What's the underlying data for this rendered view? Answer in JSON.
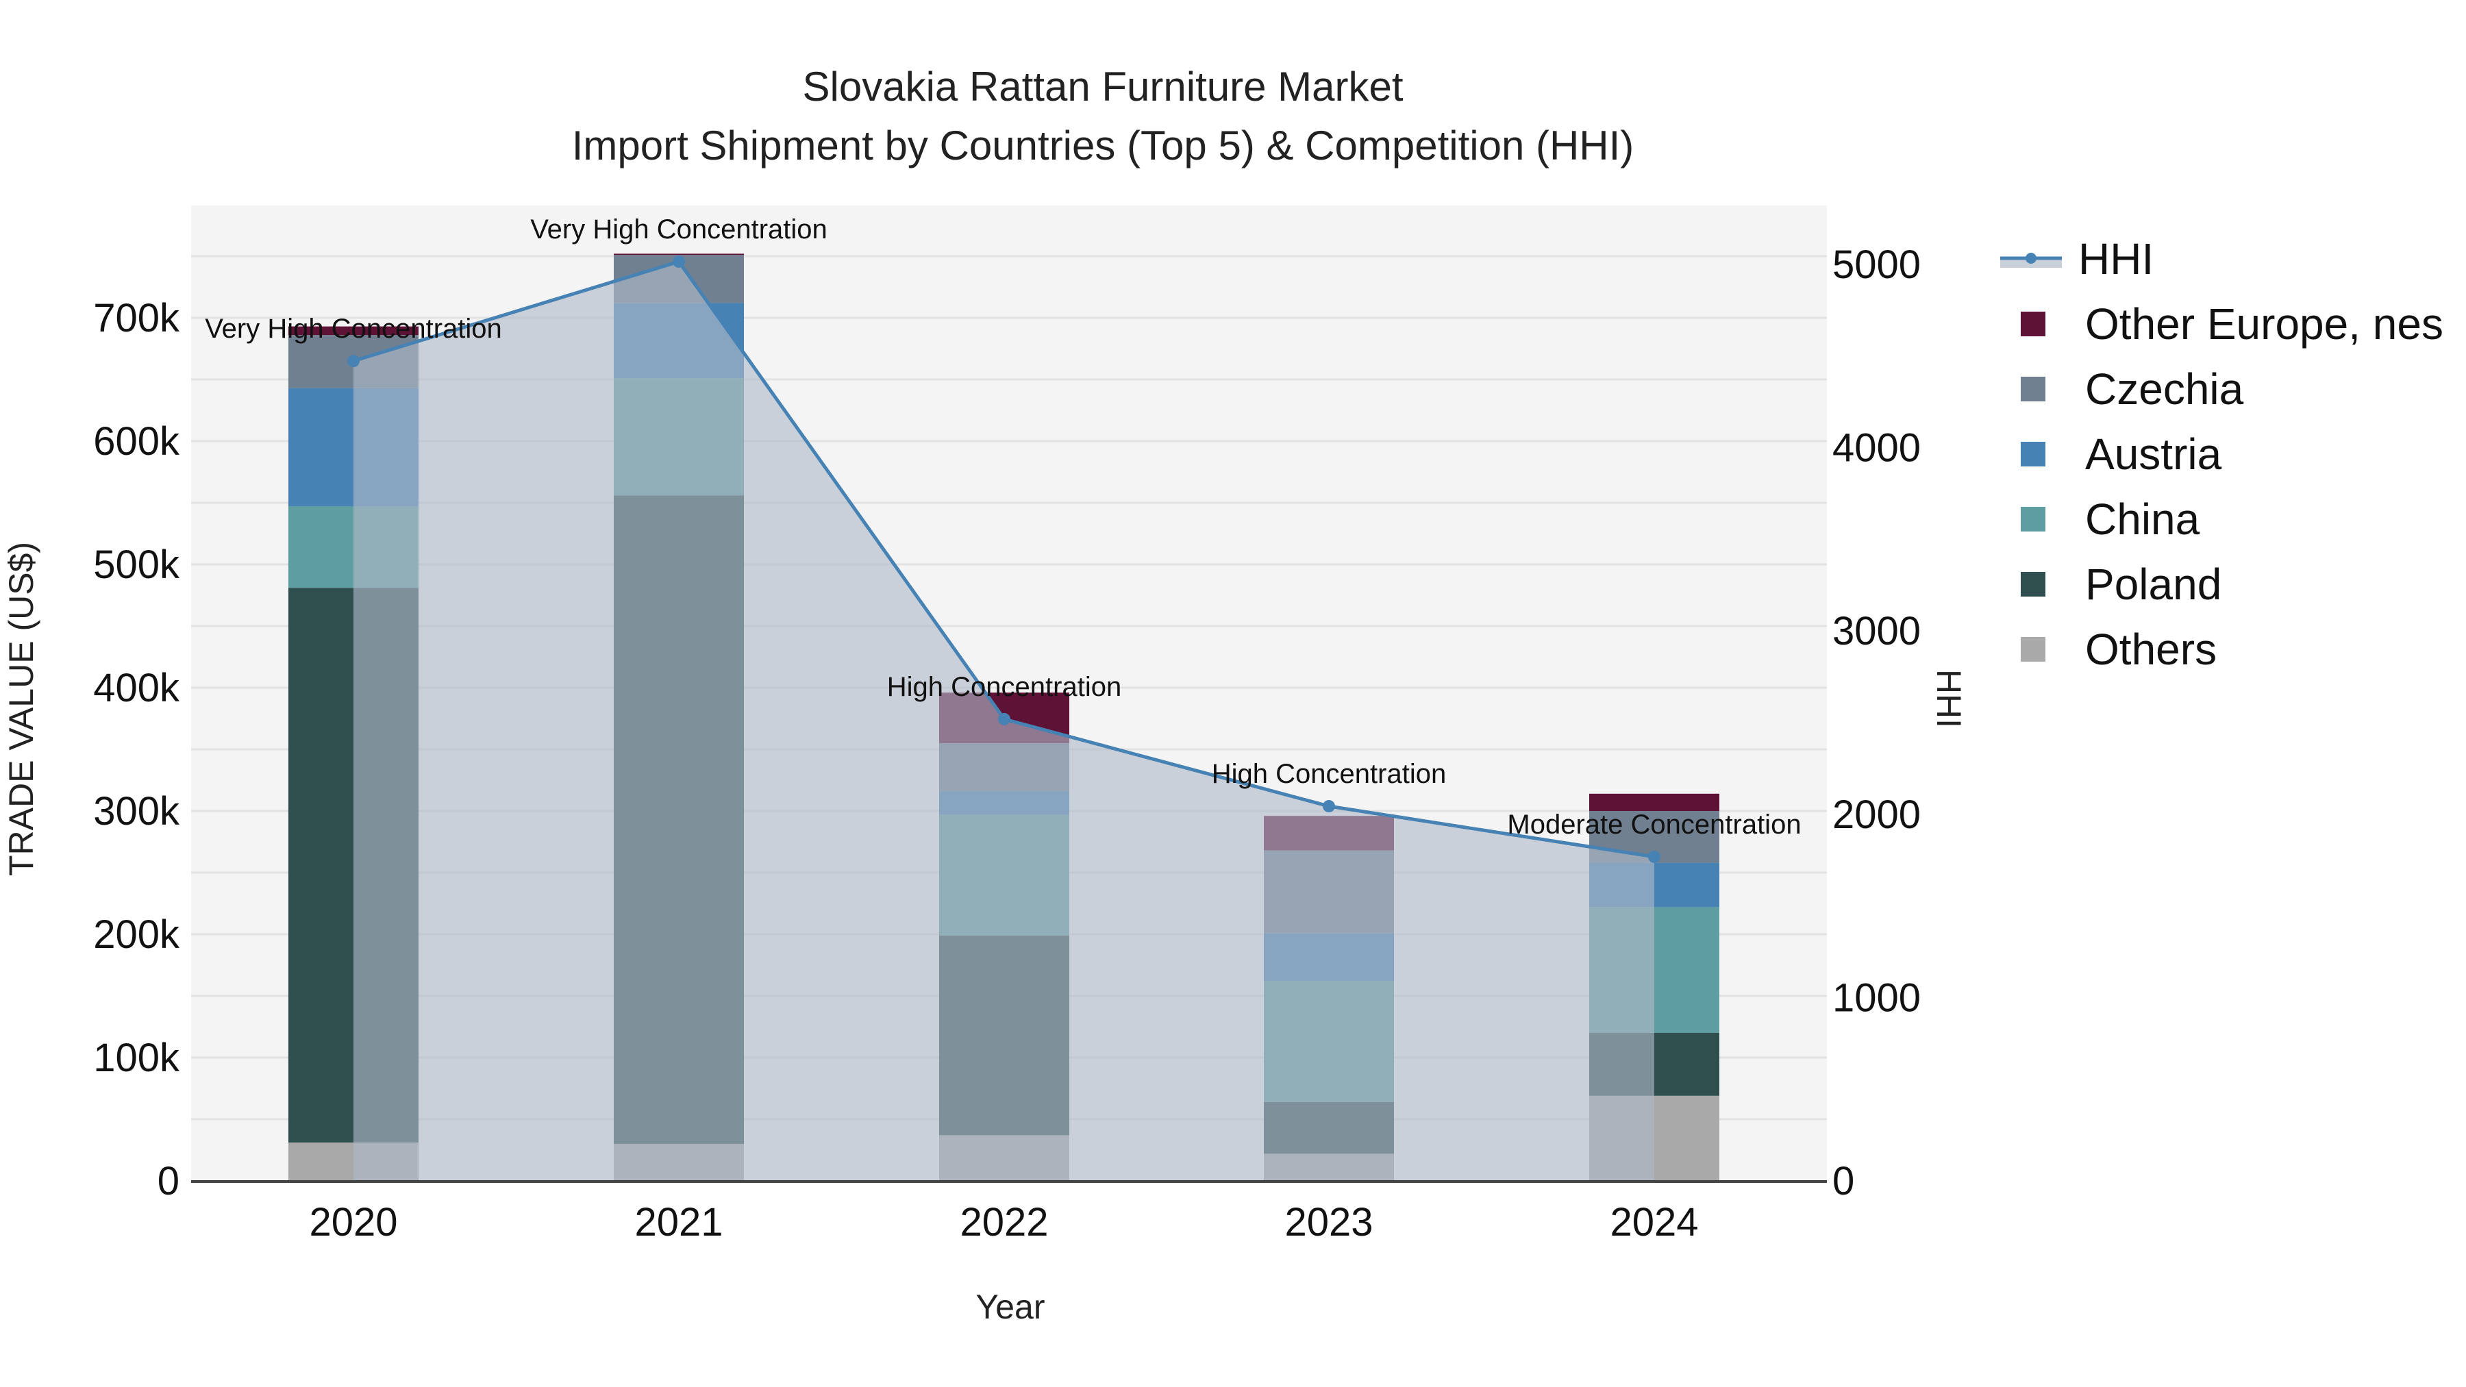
{
  "title": {
    "line1": "Slovakia Rattan Furniture Market",
    "line2": "Import Shipment by Countries (Top 5) & Competition (HHI)"
  },
  "axes": {
    "x_title": "Year",
    "y_left_title": "TRADE VALUE (US$)",
    "y_right_title": "HHI",
    "y_left_ticks": [
      "0",
      "100k",
      "200k",
      "300k",
      "400k",
      "500k",
      "600k",
      "700k"
    ],
    "y_right_ticks": [
      "0",
      "1000",
      "2000",
      "3000",
      "4000",
      "5000"
    ],
    "x_ticks": [
      "2020",
      "2021",
      "2022",
      "2023",
      "2024"
    ]
  },
  "legend": [
    {
      "name": "HHI",
      "type": "line",
      "color": "#4682B4"
    },
    {
      "name": "Other Europe, nes",
      "type": "bar",
      "color": "#5E1235"
    },
    {
      "name": "Czechia",
      "type": "bar",
      "color": "#708090"
    },
    {
      "name": "Austria",
      "type": "bar",
      "color": "#4682B4"
    },
    {
      "name": "China",
      "type": "bar",
      "color": "#5F9EA0"
    },
    {
      "name": "Poland",
      "type": "bar",
      "color": "#2F4F4F"
    },
    {
      "name": "Others",
      "type": "bar",
      "color": "#A9A9A9"
    }
  ],
  "annotations": [
    {
      "year": "2020",
      "text": "Very High Concentration"
    },
    {
      "year": "2021",
      "text": "Very High Concentration"
    },
    {
      "year": "2022",
      "text": "High Concentration"
    },
    {
      "year": "2023",
      "text": "High Concentration"
    },
    {
      "year": "2024",
      "text": "Moderate Concentration"
    }
  ],
  "chart_data": {
    "type": "bar",
    "stacked": true,
    "title": "Slovakia Rattan Furniture Market — Import Shipment by Countries (Top 5) & Competition (HHI)",
    "xlabel": "Year",
    "ylabel": "TRADE VALUE (US$)",
    "y2label": "HHI",
    "categories": [
      "2020",
      "2021",
      "2022",
      "2023",
      "2024"
    ],
    "ylim": [
      0,
      760000
    ],
    "y2lim": [
      0,
      5300
    ],
    "series": [
      {
        "name": "Others",
        "color": "#A9A9A9",
        "values": [
          31000,
          30000,
          37000,
          22000,
          69000
        ]
      },
      {
        "name": "Poland",
        "color": "#2F4F4F",
        "values": [
          450000,
          526000,
          162000,
          42000,
          51000
        ]
      },
      {
        "name": "China",
        "color": "#5F9EA0",
        "values": [
          66000,
          95000,
          98000,
          98000,
          102000
        ]
      },
      {
        "name": "Austria",
        "color": "#4682B4",
        "values": [
          96000,
          61000,
          19000,
          39000,
          36000
        ]
      },
      {
        "name": "Czechia",
        "color": "#708090",
        "values": [
          43000,
          39000,
          39000,
          67000,
          42000
        ]
      },
      {
        "name": "Other Europe, nes",
        "color": "#5E1235",
        "values": [
          7000,
          1000,
          41000,
          28000,
          14000
        ]
      }
    ],
    "line_series": {
      "name": "HHI",
      "axis": "right",
      "type": "line+area",
      "color": "#4682B4",
      "values": [
        4473,
        5015,
        2519,
        2044,
        1768
      ],
      "labels": [
        "Very High Concentration",
        "Very High Concentration",
        "High Concentration",
        "High Concentration",
        "Moderate Concentration"
      ]
    },
    "grid": true,
    "legend_position": "right"
  }
}
